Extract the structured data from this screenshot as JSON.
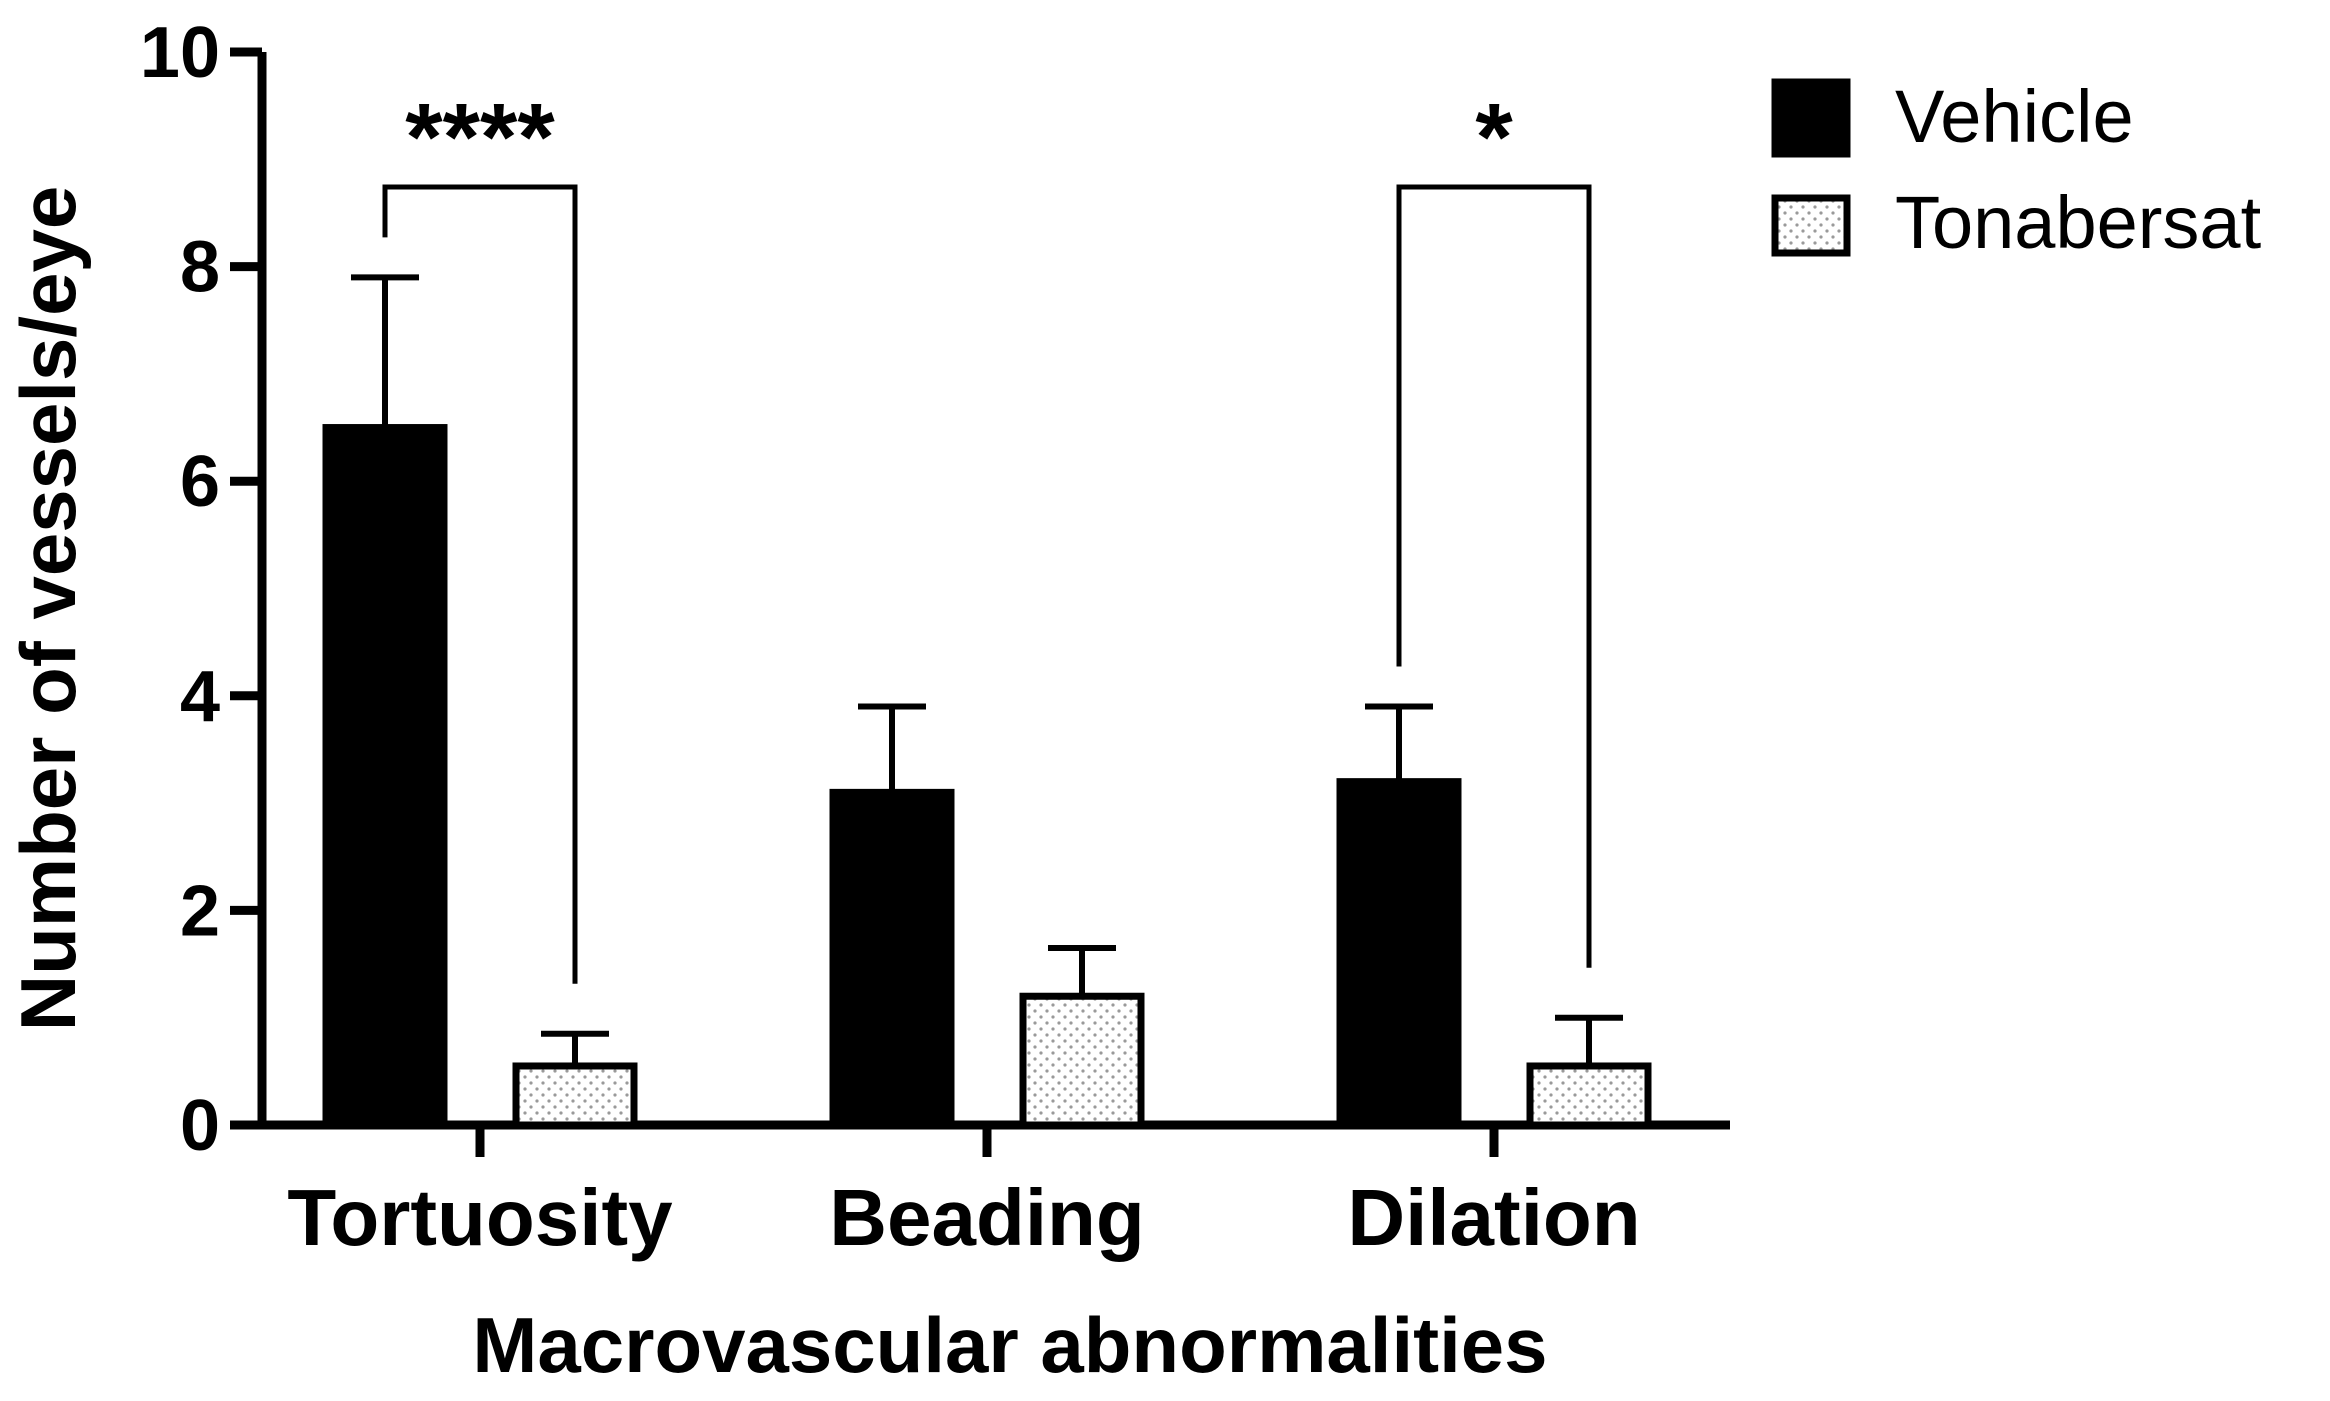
{
  "chart_data": {
    "type": "bar",
    "title": "",
    "xlabel": "Macrovascular abnormalities",
    "ylabel": "Number of vessels/eye",
    "ylim": [
      0,
      10
    ],
    "yticks": [
      0,
      2,
      4,
      6,
      8,
      10
    ],
    "categories": [
      "Tortuosity",
      "Beading",
      "Dilation"
    ],
    "series": [
      {
        "name": "Vehicle",
        "pattern": "solid",
        "color": "#000000",
        "values": [
          6.5,
          3.1,
          3.2
        ],
        "errors": [
          1.4,
          0.8,
          0.7
        ]
      },
      {
        "name": "Tonabersat",
        "pattern": "dotted",
        "color": "#ffffff",
        "values": [
          0.55,
          1.2,
          0.55
        ],
        "errors": [
          0.3,
          0.45,
          0.45
        ]
      }
    ],
    "significance": [
      {
        "category": "Tortuosity",
        "label": "****"
      },
      {
        "category": "Dilation",
        "label": "*"
      }
    ],
    "legend_position": "top-right"
  }
}
